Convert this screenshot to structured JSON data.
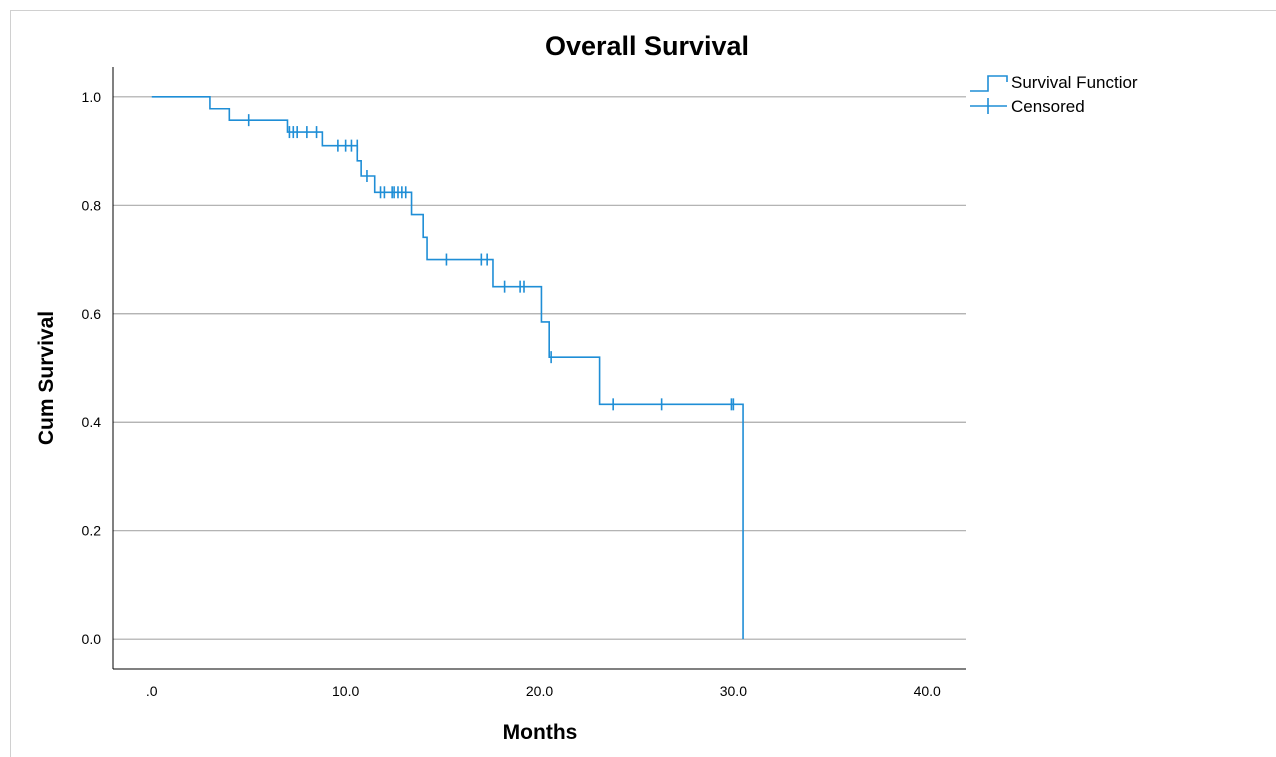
{
  "chart_data": {
    "type": "line",
    "title": "Overall Survival",
    "xlabel": "Months",
    "ylabel": "Cum Survival",
    "xlim": [
      -2.0,
      42.0
    ],
    "ylim": [
      -0.055,
      1.055
    ],
    "x_ticks": [
      0,
      10,
      20,
      30,
      40
    ],
    "x_tick_labels": [
      ".0",
      "10.0",
      "20.0",
      "30.0",
      "40.0"
    ],
    "y_ticks": [
      0.0,
      0.2,
      0.4,
      0.6,
      0.8,
      1.0
    ],
    "y_tick_labels": [
      "0.0",
      "0.2",
      "0.4",
      "0.6",
      "0.8",
      "1.0"
    ],
    "grid": "horizontal",
    "legend_position": "top-right",
    "legend": [
      "Survival Functior",
      "Censored"
    ],
    "line_color": "#1f8ed6",
    "series": [
      {
        "name": "Survival Functior",
        "step": [
          [
            0.0,
            1.0
          ],
          [
            3.0,
            0.978
          ],
          [
            4.0,
            0.957
          ],
          [
            7.0,
            0.935
          ],
          [
            8.8,
            0.91
          ],
          [
            10.6,
            0.882
          ],
          [
            10.8,
            0.854
          ],
          [
            11.5,
            0.824
          ],
          [
            13.4,
            0.783
          ],
          [
            14.0,
            0.741
          ],
          [
            14.2,
            0.7
          ],
          [
            17.6,
            0.65
          ],
          [
            20.1,
            0.585
          ],
          [
            20.5,
            0.52
          ],
          [
            23.1,
            0.433
          ],
          [
            30.5,
            0.0
          ]
        ]
      },
      {
        "name": "Censored",
        "points": [
          [
            5.0,
            0.957
          ],
          [
            7.1,
            0.935
          ],
          [
            7.3,
            0.935
          ],
          [
            7.5,
            0.935
          ],
          [
            8.0,
            0.935
          ],
          [
            8.5,
            0.935
          ],
          [
            9.6,
            0.91
          ],
          [
            10.0,
            0.91
          ],
          [
            10.3,
            0.91
          ],
          [
            10.6,
            0.91
          ],
          [
            11.1,
            0.854
          ],
          [
            11.8,
            0.824
          ],
          [
            12.0,
            0.824
          ],
          [
            12.4,
            0.824
          ],
          [
            12.5,
            0.824
          ],
          [
            12.7,
            0.824
          ],
          [
            12.9,
            0.824
          ],
          [
            13.1,
            0.824
          ],
          [
            15.2,
            0.7
          ],
          [
            17.0,
            0.7
          ],
          [
            17.3,
            0.7
          ],
          [
            18.2,
            0.65
          ],
          [
            19.0,
            0.65
          ],
          [
            19.2,
            0.65
          ],
          [
            20.6,
            0.52
          ],
          [
            23.8,
            0.433
          ],
          [
            26.3,
            0.433
          ],
          [
            29.9,
            0.433
          ],
          [
            30.0,
            0.433
          ]
        ]
      }
    ]
  }
}
